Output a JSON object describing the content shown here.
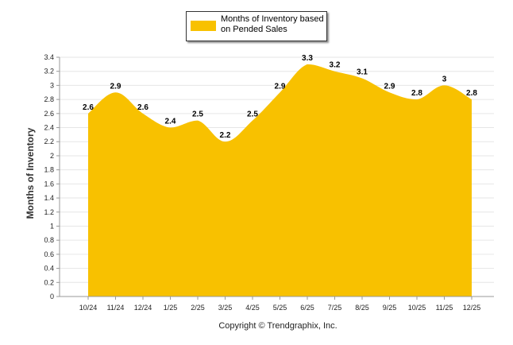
{
  "chart_data": {
    "type": "area",
    "title": "",
    "xlabel": "",
    "ylabel": "Months of Inventory",
    "categories": [
      "10/24",
      "11/24",
      "12/24",
      "1/25",
      "2/25",
      "3/25",
      "4/25",
      "5/25",
      "6/25",
      "7/25",
      "8/25",
      "9/25",
      "10/25",
      "11/25",
      "12/25"
    ],
    "series": [
      {
        "name": "Months of Inventory based on Pended Sales",
        "values": [
          2.6,
          2.9,
          2.6,
          2.4,
          2.5,
          2.2,
          2.5,
          2.9,
          3.3,
          3.2,
          3.1,
          2.9,
          2.8,
          3.0,
          2.8
        ],
        "labels": [
          "2.6",
          "2.9",
          "2.6",
          "2.4",
          "2.5",
          "2.2",
          "2.5",
          "2.9",
          "3.3",
          "3.2",
          "3.1",
          "2.9",
          "2.8",
          "3",
          "2.8"
        ]
      }
    ],
    "y_ticks": [
      "0",
      "0.2",
      "0.4",
      "0.6",
      "0.8",
      "1",
      "1.2",
      "1.4",
      "1.6",
      "1.8",
      "2",
      "2.2",
      "2.4",
      "2.6",
      "2.8",
      "3",
      "3.2",
      "3.4"
    ],
    "ylim": [
      0,
      3.4
    ],
    "grid": true,
    "legend_position": "top-center",
    "colors": {
      "area": "#F8C100",
      "grid": "#E6E6E6",
      "axis": "#999999"
    }
  },
  "footer": {
    "copyright": "Copyright © Trendgraphix, Inc."
  }
}
